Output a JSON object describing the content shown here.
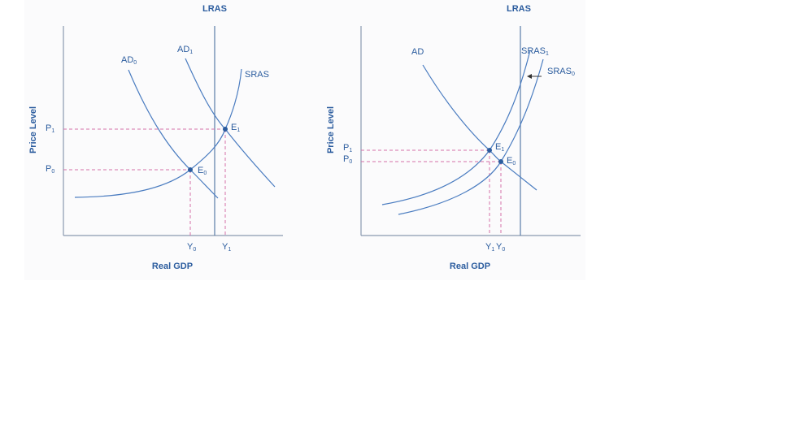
{
  "panels": [
    {
      "lras": "LRAS",
      "y_axis": "Price Level",
      "x_axis": "Real GDP",
      "curve_labels": [
        {
          "text": "AD",
          "sub": "0"
        },
        {
          "text": "AD",
          "sub": "1"
        },
        {
          "text": "SRAS"
        }
      ],
      "price_labels": [
        {
          "text": "P",
          "sub": "1"
        },
        {
          "text": "P",
          "sub": "0"
        }
      ],
      "quantity_labels": [
        {
          "text": "Y",
          "sub": "0"
        },
        {
          "text": "Y",
          "sub": "1"
        }
      ],
      "equilibria": [
        {
          "text": "E",
          "sub": "1"
        },
        {
          "text": "E",
          "sub": "0"
        }
      ]
    },
    {
      "lras": "LRAS",
      "y_axis": "Price Level",
      "x_axis": "Real GDP",
      "curve_labels": [
        {
          "text": "AD"
        },
        {
          "text": "SRAS",
          "sub": "1"
        },
        {
          "text": "SRAS",
          "sub": "0"
        }
      ],
      "price_labels": [
        {
          "text": "P",
          "sub": "1"
        },
        {
          "text": "P",
          "sub": "0"
        }
      ],
      "quantity_labels": [
        {
          "text": "Y",
          "sub": "1"
        },
        {
          "text": "Y",
          "sub": "0"
        }
      ],
      "equilibria": [
        {
          "text": "E",
          "sub": "1"
        },
        {
          "text": "E",
          "sub": "0"
        }
      ]
    }
  ]
}
